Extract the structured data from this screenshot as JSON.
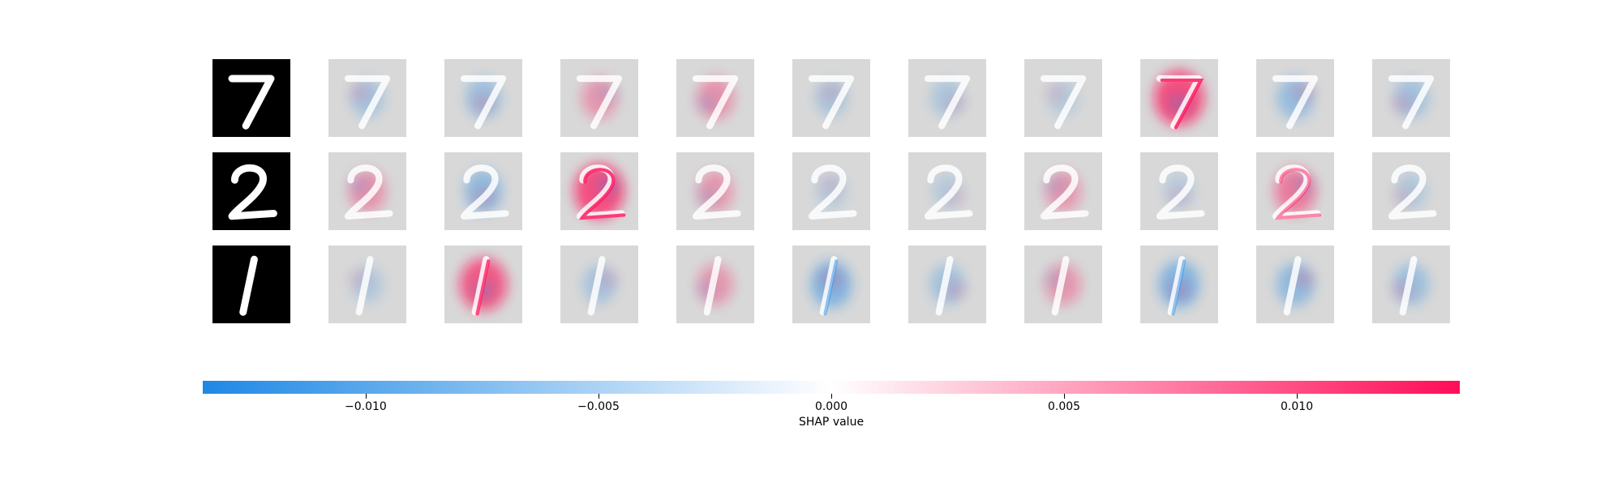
{
  "chart_data": {
    "type": "heatmap",
    "description": "SHAP image explanations: each row is an input digit image followed by SHAP attribution maps for the 10 output classes",
    "rows": [
      {
        "input_digit": "7",
        "class_intensity": [
          0.25,
          0.35,
          0.35,
          0.4,
          0.2,
          0.2,
          0.1,
          1.0,
          0.4,
          0.3
        ],
        "class_sign": [
          -1,
          -1,
          1,
          1,
          -1,
          -1,
          -1,
          1,
          -1,
          -1
        ]
      },
      {
        "input_digit": "2",
        "class_intensity": [
          0.4,
          0.45,
          1.0,
          0.35,
          0.1,
          0.1,
          0.35,
          0.1,
          0.6,
          0.15
        ],
        "class_sign": [
          1,
          -1,
          1,
          1,
          -1,
          -1,
          1,
          -1,
          1,
          -1
        ]
      },
      {
        "input_digit": "1",
        "class_intensity": [
          0.15,
          0.9,
          0.25,
          0.35,
          0.6,
          0.3,
          0.35,
          0.6,
          0.45,
          0.35
        ],
        "class_sign": [
          -1,
          1,
          -1,
          1,
          -1,
          -1,
          1,
          -1,
          -1,
          -1
        ]
      }
    ],
    "colorbar": {
      "label": "SHAP value",
      "min": -0.0135,
      "max": 0.0135,
      "ticks": [
        -0.01,
        -0.005,
        0.0,
        0.005,
        0.01
      ],
      "tick_labels": [
        "−0.010",
        "−0.005",
        "0.000",
        "0.005",
        "0.010"
      ],
      "negative_color": "#1e88e5",
      "zero_color": "#ffffff",
      "positive_color": "#ff0d57"
    },
    "panel_background_color": "#d8d8d8",
    "input_background_color": "#000000"
  }
}
